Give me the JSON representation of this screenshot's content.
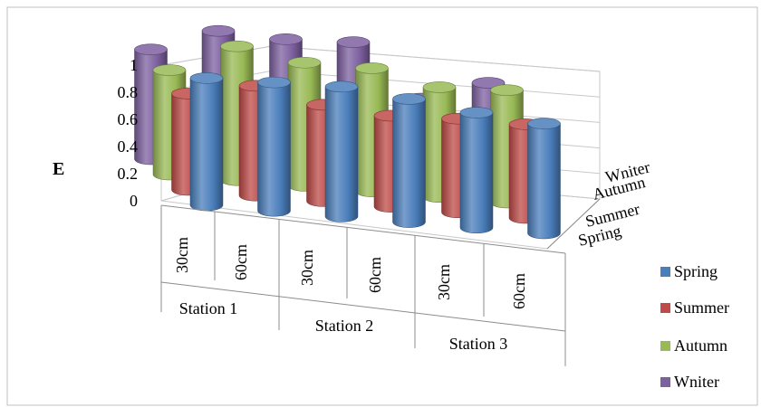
{
  "chart_data": {
    "type": "bar",
    "variant": "3d-cylinder",
    "title": "",
    "ylabel": "E",
    "xlabel": "",
    "ylim": [
      0,
      1
    ],
    "yticks": [
      "0",
      "0.2",
      "0.4",
      "0.6",
      "0.8",
      "1"
    ],
    "groups": [
      "Station 1",
      "Station 2",
      "Station 3"
    ],
    "categories": [
      "30cm",
      "60cm",
      "30cm",
      "60cm",
      "30cm",
      "60cm"
    ],
    "depth_labels": [
      "Spring",
      "Summer",
      "Autumn",
      "Wniter"
    ],
    "series": [
      {
        "name": "Spring",
        "color": "#4a7ebb",
        "values": [
          0.95,
          0.96,
          0.97,
          0.92,
          0.86,
          0.82
        ]
      },
      {
        "name": "Summer",
        "color": "#be4b48",
        "values": [
          0.72,
          0.82,
          0.72,
          0.68,
          0.7,
          0.7
        ]
      },
      {
        "name": "Autumn",
        "color": "#98b954",
        "values": [
          0.78,
          1.0,
          0.92,
          0.92,
          0.82,
          0.84
        ]
      },
      {
        "name": "Wniter",
        "color": "#7d60a0",
        "values": [
          0.82,
          1.0,
          0.98,
          1.0,
          0.62,
          0.78
        ]
      }
    ],
    "legend_position": "right",
    "grid": true
  }
}
